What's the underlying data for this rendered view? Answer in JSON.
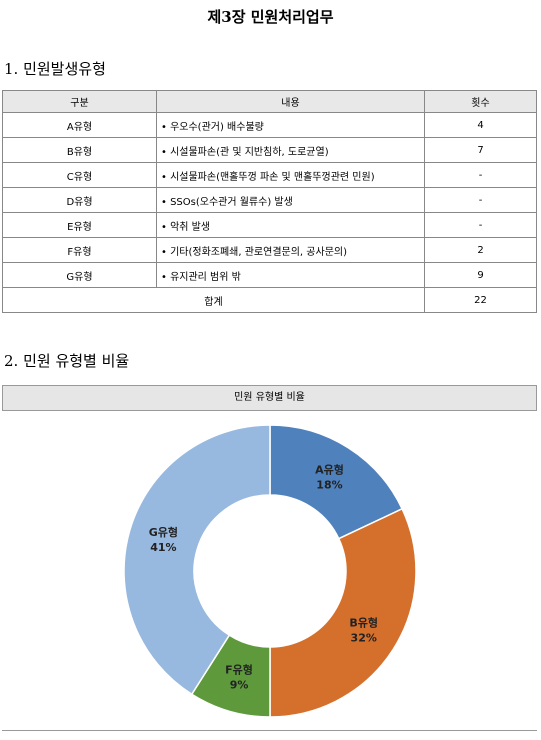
{
  "header": {
    "title": "제3장 민원처리업무"
  },
  "section1": {
    "heading": "1. 민원발생유형"
  },
  "table": {
    "columns": [
      "구분",
      "내용",
      "횟수"
    ],
    "rows": [
      [
        "A유형",
        "• 우오수(관거) 배수불량",
        4
      ],
      [
        "B유형",
        "• 시설물파손(관 및 지반침하, 도로균열)",
        7
      ],
      [
        "C유형",
        "• 시설물파손(맨홀뚜껑 파손 및 맨홀뚜껑관련 민원)",
        "-"
      ],
      [
        "D유형",
        "• SSOs(오수관거 월류수) 발생",
        "-"
      ],
      [
        "E유형",
        "• 악취 발생",
        "-"
      ],
      [
        "F유형",
        "• 기타(정화조폐쇄, 관로연결문의, 공사문의)",
        2
      ],
      [
        "G유형",
        "• 유지관리 범위 밖",
        9
      ]
    ],
    "total": {
      "label": "합계",
      "count": 22
    }
  },
  "section2": {
    "heading": "2. 민원 유형별 비율"
  },
  "chart_data": {
    "type": "donut",
    "title": "민원 유형별 비율",
    "categories": [
      "A유형",
      "B유형",
      "F유형",
      "G유형"
    ],
    "values": [
      18,
      32,
      9,
      41
    ],
    "value_labels": [
      "18%",
      "32%",
      "9%",
      "41%"
    ],
    "colors": [
      "#4f81bd",
      "#d5702c",
      "#5e9a3c",
      "#97b8df"
    ]
  }
}
